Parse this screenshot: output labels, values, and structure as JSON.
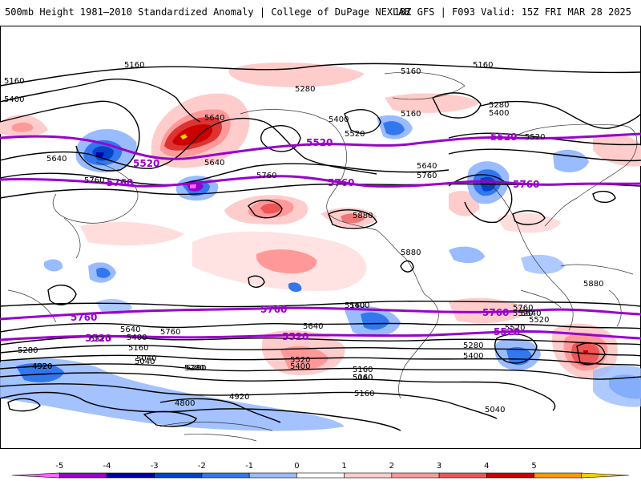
{
  "header": {
    "title_left": "500mb Height 1981–2010 Standardized Anomaly | College of DuPage NEXLAB",
    "title_right": "18Z GFS | F093 Valid: 15Z FRI MAR 28 2025"
  },
  "colorbar": {
    "ticks": [
      "-5",
      "-4",
      "-3",
      "-2",
      "-1",
      "0",
      "1",
      "2",
      "3",
      "4",
      "5"
    ],
    "colors": [
      "#ff66ff",
      "#9900cc",
      "#0000aa",
      "#0044cc",
      "#3377ee",
      "#99bbff",
      "#ffffff",
      "#ffcccc",
      "#ff9999",
      "#ee5555",
      "#cc0000",
      "#ff9900",
      "#ffcc00"
    ]
  },
  "contour_labels": {
    "black": [
      "5160",
      "5160",
      "5400",
      "5160",
      "5280",
      "5400",
      "5640",
      "5520",
      "5160",
      "5280",
      "5400",
      "5520",
      "5160",
      "5640",
      "5640",
      "5760",
      "5760",
      "5640",
      "5760",
      "5880",
      "5880",
      "5880",
      "5400",
      "5160",
      "5520",
      "5640",
      "5760",
      "5760",
      "5640",
      "5400",
      "5520",
      "5280",
      "5160",
      "5040",
      "5400",
      "5520",
      "5280",
      "5160",
      "5040",
      "5640",
      "5520",
      "5400",
      "5280",
      "5160",
      "5040",
      "4920",
      "4800",
      "4920",
      "4920",
      "5040",
      "5280",
      "5160",
      "5520"
    ],
    "purple": [
      "5520",
      "5520",
      "5520",
      "5760",
      "5760",
      "5760",
      "5760",
      "5760",
      "5760",
      "5520",
      "5520",
      "5520"
    ]
  }
}
